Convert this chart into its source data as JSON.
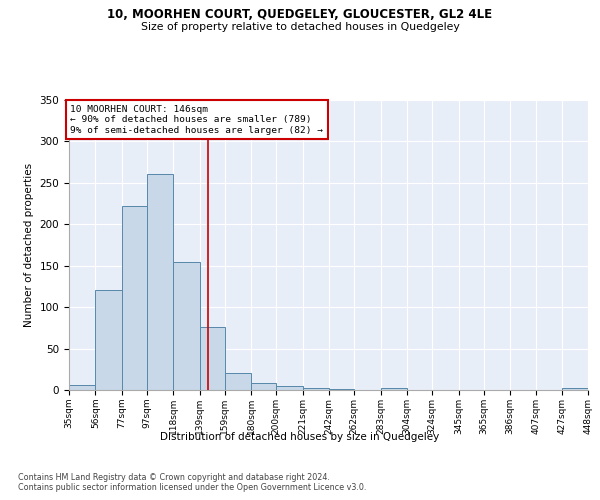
{
  "title": "10, MOORHEN COURT, QUEDGELEY, GLOUCESTER, GL2 4LE",
  "subtitle": "Size of property relative to detached houses in Quedgeley",
  "xlabel": "Distribution of detached houses by size in Quedgeley",
  "ylabel": "Number of detached properties",
  "bar_color": "#c8d8e8",
  "bar_edge_color": "#5588aa",
  "background_color": "#e8eef8",
  "grid_color": "#ffffff",
  "annotation_line_color": "#cc0000",
  "annotation_box_color": "#cc0000",
  "annotation_text": "10 MOORHEN COURT: 146sqm\n← 90% of detached houses are smaller (789)\n9% of semi-detached houses are larger (82) →",
  "property_line_x": 146,
  "footnote1": "Contains HM Land Registry data © Crown copyright and database right 2024.",
  "footnote2": "Contains public sector information licensed under the Open Government Licence v3.0.",
  "bin_edges": [
    35,
    56,
    77,
    97,
    118,
    139,
    159,
    180,
    200,
    221,
    242,
    262,
    283,
    304,
    324,
    345,
    365,
    386,
    407,
    427,
    448
  ],
  "bar_heights": [
    6,
    121,
    222,
    261,
    154,
    76,
    21,
    9,
    5,
    3,
    1,
    0,
    3,
    0,
    0,
    0,
    0,
    0,
    0,
    3
  ],
  "ylim": [
    0,
    350
  ],
  "yticks": [
    0,
    50,
    100,
    150,
    200,
    250,
    300,
    350
  ]
}
